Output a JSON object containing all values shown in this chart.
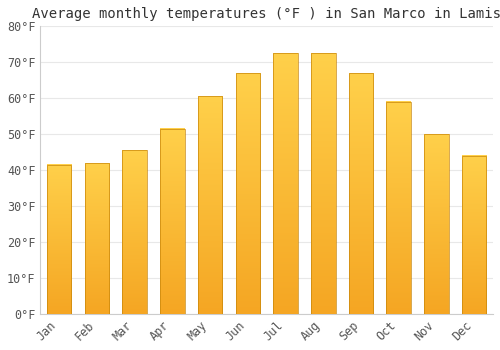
{
  "title": "Average monthly temperatures (°F ) in San Marco in Lamis",
  "months": [
    "Jan",
    "Feb",
    "Mar",
    "Apr",
    "May",
    "Jun",
    "Jul",
    "Aug",
    "Sep",
    "Oct",
    "Nov",
    "Dec"
  ],
  "values": [
    41.5,
    42,
    45.5,
    51.5,
    60.5,
    67,
    72.5,
    72.5,
    67,
    59,
    50,
    44
  ],
  "bar_color_light": "#FFD04A",
  "bar_color_dark": "#F5A623",
  "bar_border_color": "#C8860A",
  "ylim": [
    0,
    80
  ],
  "yticks": [
    0,
    10,
    20,
    30,
    40,
    50,
    60,
    70,
    80
  ],
  "ytick_labels": [
    "0°F",
    "10°F",
    "20°F",
    "30°F",
    "40°F",
    "50°F",
    "60°F",
    "70°F",
    "80°F"
  ],
  "background_color": "#ffffff",
  "plot_bg_color": "#ffffff",
  "grid_color": "#e8e8e8",
  "title_fontsize": 10,
  "tick_fontsize": 8.5,
  "bar_width": 0.65
}
